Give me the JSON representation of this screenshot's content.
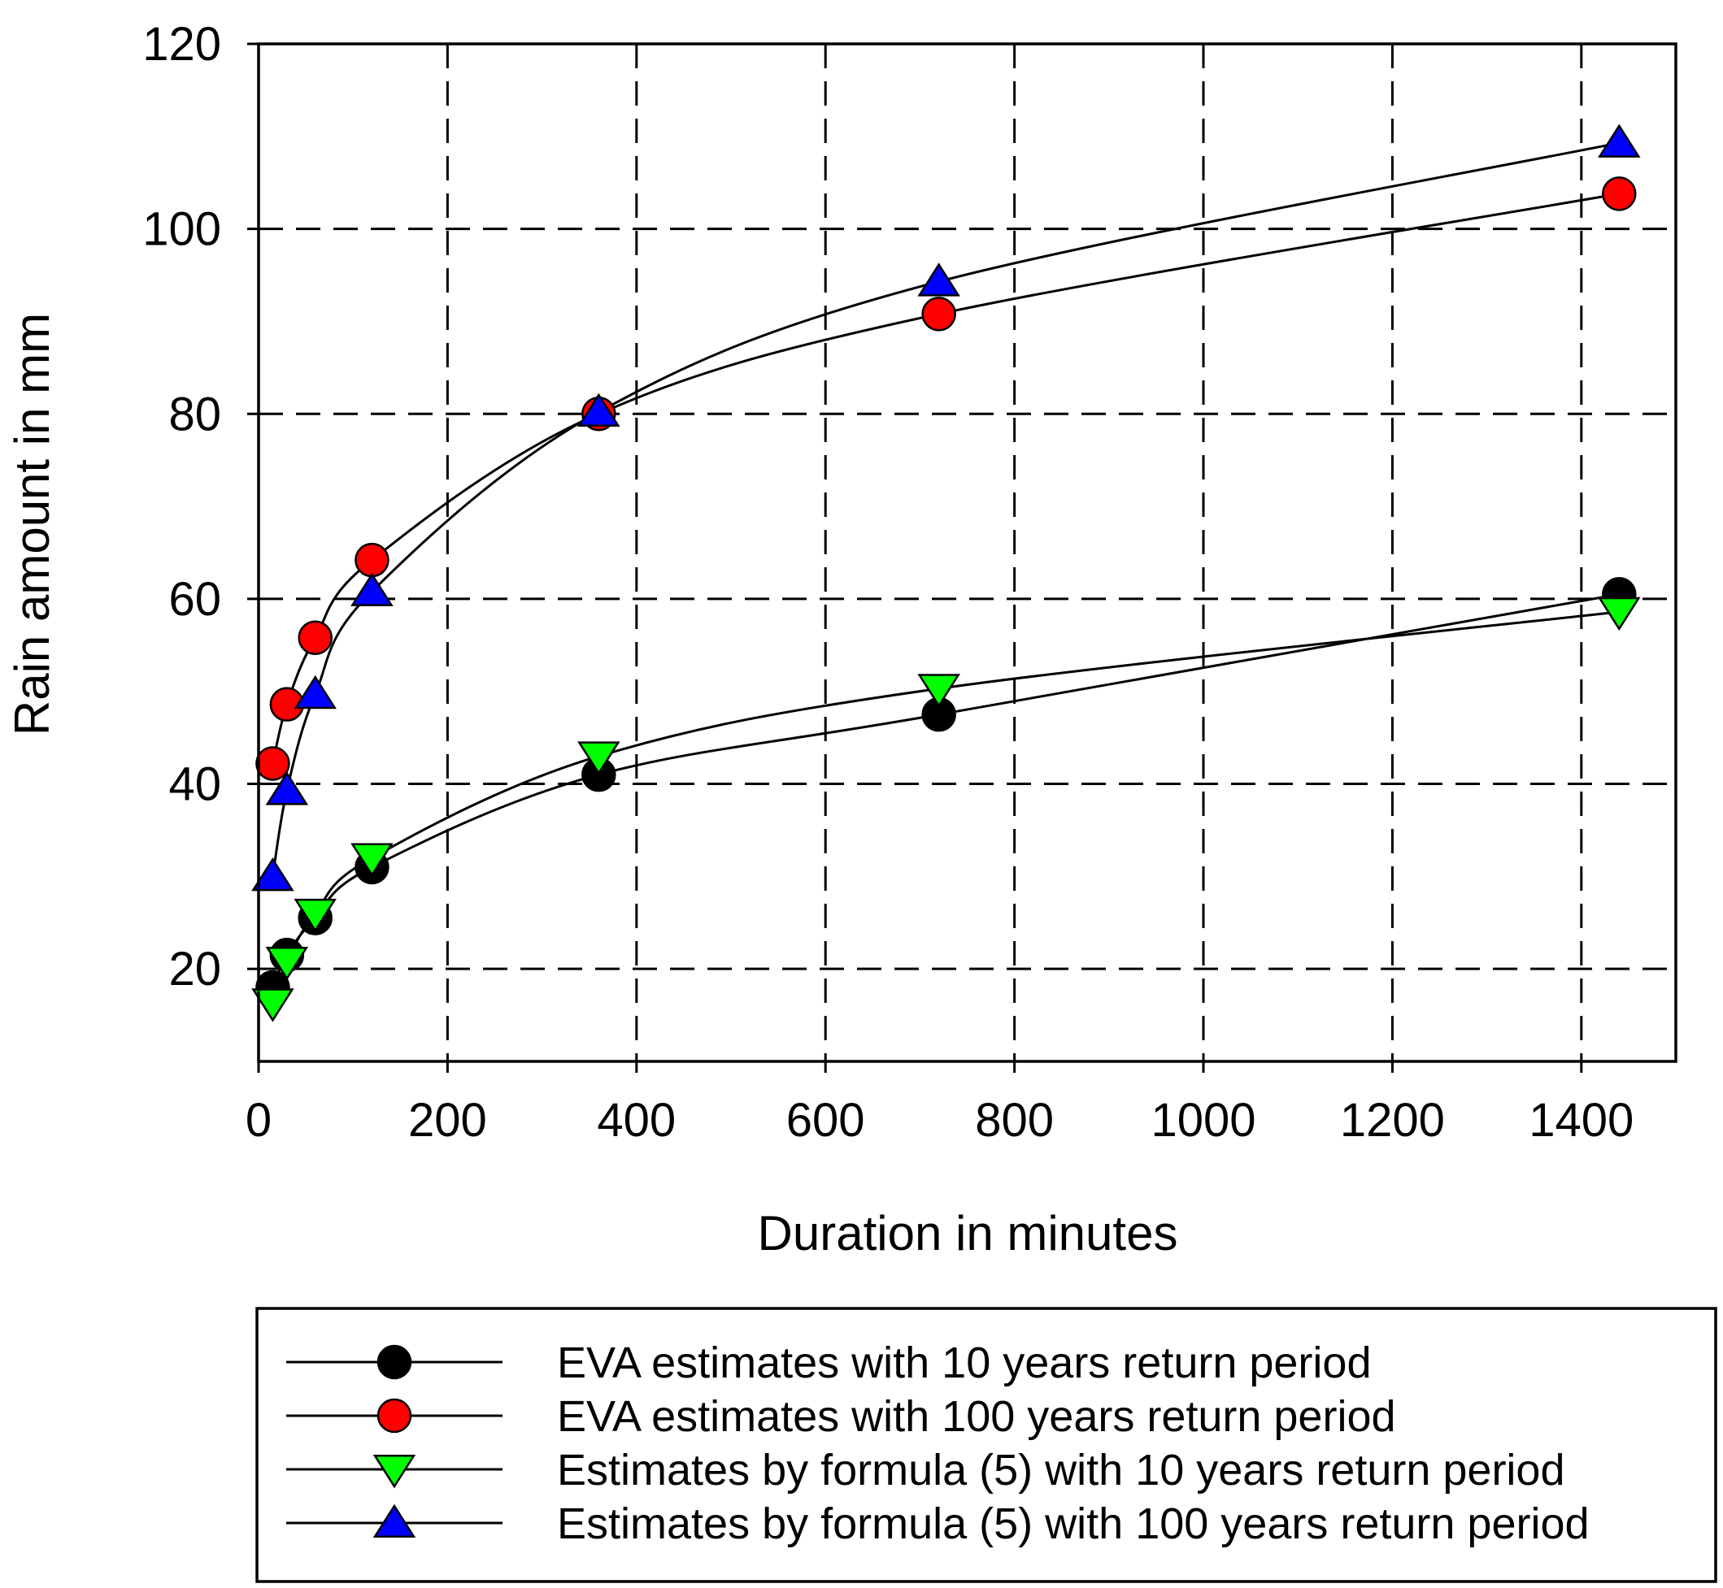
{
  "chart_data": {
    "type": "line",
    "title": "",
    "xlabel": "Duration in minutes",
    "ylabel": "Rain amount in mm",
    "xlim": [
      0,
      1500
    ],
    "ylim": [
      10,
      120
    ],
    "xticks": [
      0,
      200,
      400,
      600,
      800,
      1000,
      1200,
      1400
    ],
    "yticks": [
      20,
      40,
      60,
      80,
      100,
      120
    ],
    "grid": true,
    "legend_position": "bottom",
    "series": [
      {
        "name": "EVA estimates with 10 years return period",
        "marker": "circle",
        "color": "#000000",
        "x": [
          15,
          30,
          60,
          120,
          360,
          720,
          1440
        ],
        "values": [
          18,
          21.5,
          25.5,
          31,
          41,
          47.5,
          60.5
        ]
      },
      {
        "name": "EVA estimates with 100 years return period",
        "marker": "circle",
        "color": "#ff0000",
        "x": [
          15,
          30,
          60,
          120,
          360,
          720,
          1440
        ],
        "values": [
          42.2,
          48.6,
          55.8,
          64.2,
          80,
          90.8,
          103.8
        ]
      },
      {
        "name": "Estimates by formula (5) with 10 years return period",
        "marker": "triangle-down",
        "color": "#00ff00",
        "x": [
          15,
          30,
          60,
          120,
          360,
          720,
          1440
        ],
        "values": [
          16.3,
          20.8,
          26,
          32,
          43,
          50.3,
          58.6
        ]
      },
      {
        "name": "Estimates by formula (5) with 100 years return period",
        "marker": "triangle-up",
        "color": "#0000ff",
        "x": [
          15,
          30,
          60,
          120,
          360,
          720,
          1440
        ],
        "values": [
          30,
          39.3,
          49.7,
          60.8,
          80.2,
          94.3,
          109.3
        ]
      }
    ]
  }
}
